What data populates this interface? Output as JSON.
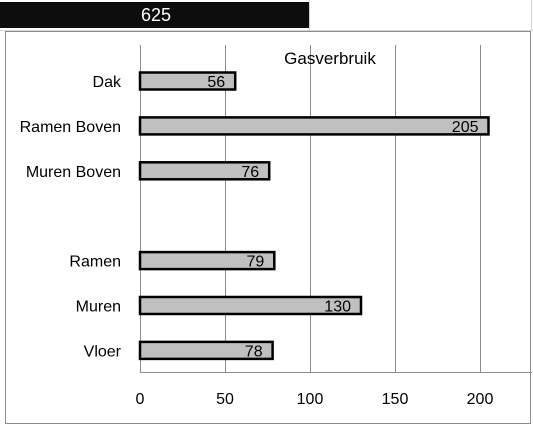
{
  "sheet": {
    "total_value": "625"
  },
  "colors": {
    "bar_fill": "#c0c0c0",
    "bar_stroke": "#000000",
    "gridline": "#8c8c8c",
    "header_fill": "#0d0d0d"
  },
  "chart_data": {
    "type": "bar",
    "orientation": "horizontal",
    "title": "Gasverbruik",
    "categories": [
      "Dak",
      "Ramen Boven",
      "Muren Boven",
      "",
      "Ramen",
      "Muren",
      "Vloer"
    ],
    "values": [
      56,
      205,
      76,
      null,
      79,
      130,
      78
    ],
    "data_labels": [
      "56",
      "205",
      "76",
      "",
      "79",
      "130",
      "78"
    ],
    "xlim": [
      0,
      200
    ],
    "x_ticks": [
      0,
      50,
      100,
      150,
      200
    ],
    "x_tick_labels": [
      "0",
      "50",
      "100",
      "150",
      "200"
    ],
    "grid": true,
    "legend": "none"
  }
}
